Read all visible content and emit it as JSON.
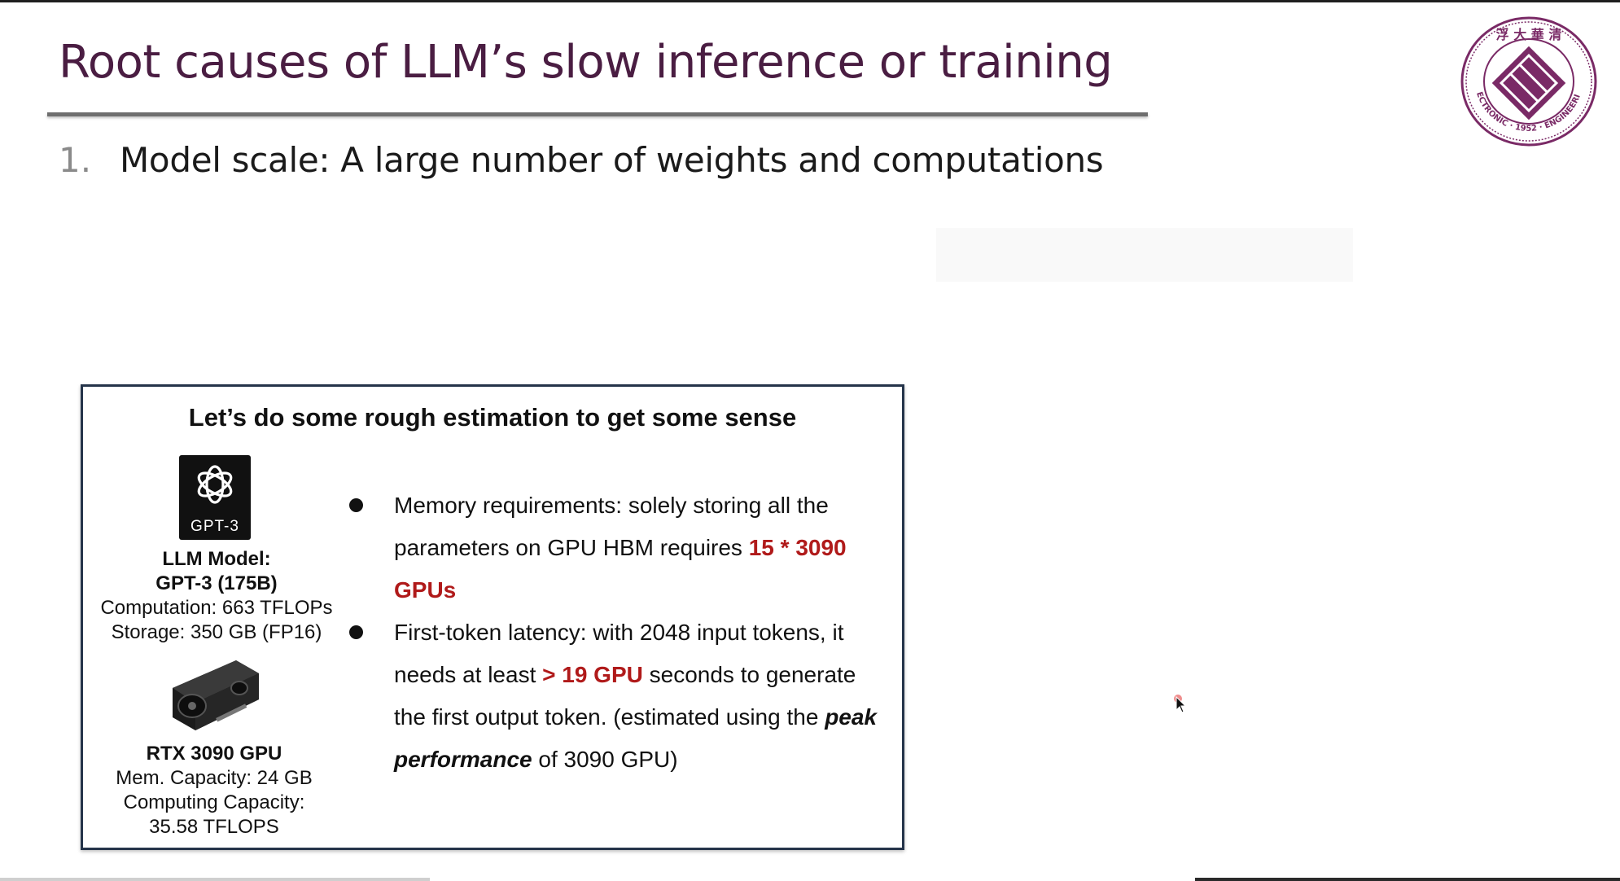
{
  "slide": {
    "title": "Root causes of LLM’s slow inference or training",
    "list_item_number": "1.",
    "list_item_text": "Model scale: A large number of weights and computations"
  },
  "logo": {
    "icon": "university-seal-icon",
    "ring_text": "ELECTRONIC · 1952 · ENGINEERING",
    "chinese_text": "浮 大 華 清",
    "color": "#7a2a66"
  },
  "box": {
    "heading": "Let’s do some rough estimation to get some sense",
    "model": {
      "logo_label": "GPT-3",
      "line1": "LLM Model:",
      "line2": "GPT-3 (175B)",
      "line3": "Computation: 663 TFLOPs",
      "line4": "Storage: 350 GB (FP16)"
    },
    "gpu": {
      "line1": "RTX 3090 GPU",
      "line2": "Mem. Capacity: 24 GB",
      "line3": "Computing Capacity:",
      "line4": "35.58 TFLOPS"
    },
    "bullets": [
      {
        "text_a": "Memory requirements: solely storing all the parameters on GPU HBM requires ",
        "highlight": "15 * 3090 GPUs"
      },
      {
        "text_a": "First-token latency: with 2048 input tokens, it needs at least ",
        "highlight": "> 19 GPU",
        "text_b": " seconds to generate the first output token. (estimated using the ",
        "emphasis": "peak performance",
        "text_c": " of 3090 GPU)"
      }
    ]
  },
  "colors": {
    "title": "#4a1d42",
    "highlight_red": "#b01a1a",
    "box_border": "#25344a"
  }
}
